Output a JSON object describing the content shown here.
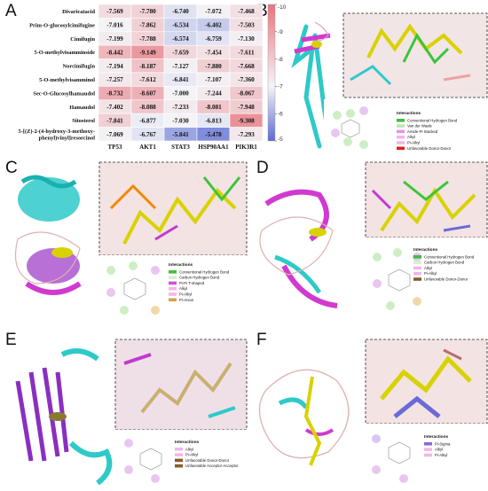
{
  "panels": [
    "A",
    "B",
    "C",
    "D",
    "E",
    "F"
  ],
  "chart_data": {
    "type": "heatmap",
    "rows": [
      "Divaricatacid",
      "Prim-O-glucosylcimifugine",
      "Cimifugin",
      "5-O-methylvisamminside",
      "Norcimifugin",
      "5-O-methylvisamminol",
      "Sec-O-Glucosylhamaudol",
      "Hamaudol",
      "Sitosterol",
      "5-[(Z)-2-(4-hydroxy-3-methoxy-phenyl)vinyl]resorcinol"
    ],
    "row_lines": [
      [
        "Divaricatacid"
      ],
      [
        "Prim-O-glucosylcimifugine"
      ],
      [
        "Cimifugin"
      ],
      [
        "5-O-methylvisamminside"
      ],
      [
        "Norcimifugin"
      ],
      [
        "5-O-methylvisamminol"
      ],
      [
        "Sec-O-Glucosylhamaudol"
      ],
      [
        "Hamaudol"
      ],
      [
        "Sitosterol"
      ],
      [
        "5-[(Z)-2-(4-hydroxy-3-methoxy-",
        "phenyl)vinyl]resorcinol"
      ]
    ],
    "columns": [
      "TP53",
      "AKT1",
      "STAT3",
      "HSP90AA1",
      "PIK3R1"
    ],
    "values": [
      [
        "-7.569",
        "-7.780",
        "-6.740",
        "-7.072",
        "-7.468"
      ],
      [
        "-7.016",
        "-7.862",
        "-6.534",
        "-6.402",
        "-7.503"
      ],
      [
        "-7.199",
        "-7.788",
        "-6.574",
        "-6.759",
        "-7.130"
      ],
      [
        "-8.442",
        "-9.149",
        "-7.659",
        "-7.454",
        "-7.611"
      ],
      [
        "-7.194",
        "-8.187",
        "-7.127",
        "-7.880",
        "-7.668"
      ],
      [
        "-7.257",
        "-7.612",
        "-6.841",
        "-7.107",
        "-7.360"
      ],
      [
        "-8.732",
        "-8.607",
        "-7.000",
        "-7.244",
        "-8.067"
      ],
      [
        "-7.402",
        "-8.088",
        "-7.233",
        "-8.081",
        "-7.948"
      ],
      [
        "-7.841",
        "-6.877",
        "-7.030",
        "-6.813",
        "-9.308"
      ],
      [
        "-7.069",
        "-6.767",
        "-5.841",
        "-5.478",
        "-7.293"
      ]
    ],
    "colorbar": {
      "ticks": [
        "-10",
        "-9",
        "-8",
        "-7",
        "-6",
        "-5"
      ],
      "range": [
        -10,
        -5
      ],
      "colors": {
        "low": "#e8757d",
        "mid": "#f4f4f7",
        "high": "#5b6bd3"
      }
    }
  },
  "interactions": {
    "title": "Interactions",
    "B": [
      [
        "Conventional Hydrogen Bond",
        "#3fbf3f"
      ],
      [
        "Van der Waals",
        "#b9e8b0"
      ],
      [
        "Amide-Pi Stacked",
        "#e394ea"
      ],
      [
        "Alkyl",
        "#f2b6e8"
      ],
      [
        "Pi-Alkyl",
        "#f2b6e8"
      ],
      [
        "Unfavorable Donor-Donor",
        "#e02020"
      ]
    ],
    "C": [
      [
        "Conventional Hydrogen Bond",
        "#3fbf3f"
      ],
      [
        "Carbon Hydrogen Bond",
        "#d6f0d0"
      ],
      [
        "Pi-Pi T-shaped",
        "#d44fd6"
      ],
      [
        "Alkyl",
        "#f2b6e8"
      ],
      [
        "Pi-Alkyl",
        "#f2b6e8"
      ],
      [
        "Pi-Anion",
        "#d9a34a"
      ]
    ],
    "D": [
      [
        "Conventional Hydrogen Bond",
        "#3fbf3f"
      ],
      [
        "Carbon Hydrogen Bond",
        "#d6f0d0"
      ],
      [
        "Alkyl",
        "#f2b6e8"
      ],
      [
        "Pi-Alkyl",
        "#f2b6e8"
      ],
      [
        "Unfavorable Donor-Donor",
        "#8a5a2a"
      ]
    ],
    "E": [
      [
        "Alkyl",
        "#f2b6e8"
      ],
      [
        "Pi-Alkyl",
        "#f2b6e8"
      ],
      [
        "Unfavorable Donor-Donor",
        "#8a5a2a"
      ],
      [
        "Unfavorable Acceptor-Acceptor",
        "#8a5a2a"
      ]
    ],
    "F": [
      [
        "Pi-Sigma",
        "#8e6bd8"
      ],
      [
        "Alkyl",
        "#f2b6e8"
      ],
      [
        "Pi-Alkyl",
        "#f2b6e8"
      ]
    ]
  }
}
